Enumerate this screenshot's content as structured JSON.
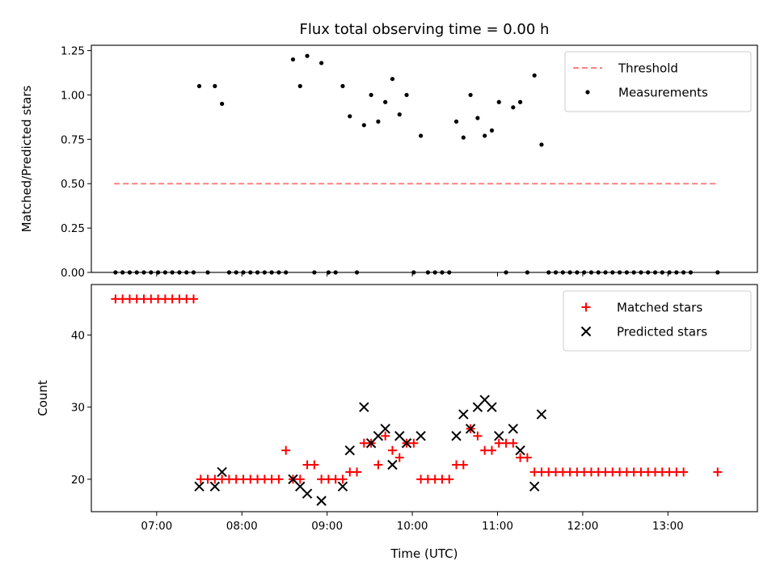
{
  "figure": {
    "title": "Flux total observing time = 0.00 h"
  },
  "chart_data": [
    {
      "type": "scatter",
      "ylabel": "Matched/Predicted stars",
      "xlabel": "",
      "ylim": [
        0,
        1.28
      ],
      "yticks": [
        "0.00",
        "0.25",
        "0.50",
        "0.75",
        "1.00",
        "1.25"
      ],
      "ytick_values": [
        0,
        0.25,
        0.5,
        0.75,
        1.0,
        1.25
      ],
      "xlim": [
        "06:14",
        "14:03"
      ],
      "xticks": [
        "07:00",
        "08:00",
        "09:00",
        "10:00",
        "11:00",
        "12:00",
        "13:00"
      ],
      "legend_position": "top-right",
      "threshold": {
        "name": "Threshold",
        "value": 0.5,
        "x_start": "06:30",
        "x_end": "13:35",
        "color": "#ff8080",
        "style": "dashed"
      },
      "series": [
        {
          "name": "Measurements",
          "color": "#000000",
          "marker": "dot",
          "points": [
            [
              "06:31",
              0
            ],
            [
              "06:36",
              0
            ],
            [
              "06:41",
              0
            ],
            [
              "06:46",
              0
            ],
            [
              "06:51",
              0
            ],
            [
              "06:56",
              0
            ],
            [
              "07:01",
              0
            ],
            [
              "07:06",
              0
            ],
            [
              "07:11",
              0
            ],
            [
              "07:16",
              0
            ],
            [
              "07:21",
              0
            ],
            [
              "07:26",
              0
            ],
            [
              "07:30",
              1.05
            ],
            [
              "07:36",
              0
            ],
            [
              "07:41",
              1.05
            ],
            [
              "07:46",
              0.95
            ],
            [
              "07:51",
              0
            ],
            [
              "07:56",
              0
            ],
            [
              "08:01",
              0
            ],
            [
              "08:06",
              0
            ],
            [
              "08:11",
              0
            ],
            [
              "08:16",
              0
            ],
            [
              "08:21",
              0
            ],
            [
              "08:26",
              0
            ],
            [
              "08:31",
              0
            ],
            [
              "08:36",
              1.2
            ],
            [
              "08:41",
              1.05
            ],
            [
              "08:46",
              1.22
            ],
            [
              "08:51",
              0
            ],
            [
              "08:56",
              1.18
            ],
            [
              "09:01",
              0
            ],
            [
              "09:06",
              0
            ],
            [
              "09:11",
              1.05
            ],
            [
              "09:16",
              0.88
            ],
            [
              "09:21",
              0
            ],
            [
              "09:26",
              0.83
            ],
            [
              "09:31",
              1.0
            ],
            [
              "09:36",
              0.85
            ],
            [
              "09:41",
              0.96
            ],
            [
              "09:46",
              1.09
            ],
            [
              "09:51",
              0.89
            ],
            [
              "09:56",
              1.0
            ],
            [
              "10:01",
              0
            ],
            [
              "10:06",
              0.77
            ],
            [
              "10:11",
              0
            ],
            [
              "10:16",
              0
            ],
            [
              "10:21",
              0
            ],
            [
              "10:26",
              0
            ],
            [
              "10:31",
              0.85
            ],
            [
              "10:36",
              0.76
            ],
            [
              "10:41",
              1.0
            ],
            [
              "10:46",
              0.87
            ],
            [
              "10:51",
              0.77
            ],
            [
              "10:56",
              0.8
            ],
            [
              "11:01",
              0.96
            ],
            [
              "11:06",
              0
            ],
            [
              "11:11",
              0.93
            ],
            [
              "11:16",
              0.96
            ],
            [
              "11:21",
              0
            ],
            [
              "11:26",
              1.11
            ],
            [
              "11:31",
              0.72
            ],
            [
              "11:36",
              0
            ],
            [
              "11:41",
              0
            ],
            [
              "11:46",
              0
            ],
            [
              "11:51",
              0
            ],
            [
              "11:56",
              0
            ],
            [
              "12:01",
              0
            ],
            [
              "12:06",
              0
            ],
            [
              "12:11",
              0
            ],
            [
              "12:16",
              0
            ],
            [
              "12:21",
              0
            ],
            [
              "12:26",
              0
            ],
            [
              "12:31",
              0
            ],
            [
              "12:36",
              0
            ],
            [
              "12:41",
              0
            ],
            [
              "12:46",
              0
            ],
            [
              "12:51",
              0
            ],
            [
              "12:56",
              0
            ],
            [
              "13:01",
              0
            ],
            [
              "13:06",
              0
            ],
            [
              "13:11",
              0
            ],
            [
              "13:16",
              0
            ],
            [
              "13:35",
              0
            ]
          ]
        }
      ]
    },
    {
      "type": "scatter",
      "xlabel": "Time (UTC)",
      "ylabel": "Count",
      "ylim": [
        15.5,
        47
      ],
      "yticks": [
        "20",
        "30",
        "40"
      ],
      "ytick_values": [
        20,
        30,
        40
      ],
      "xlim": [
        "06:14",
        "14:03"
      ],
      "xticks": [
        "07:00",
        "08:00",
        "09:00",
        "10:00",
        "11:00",
        "12:00",
        "13:00"
      ],
      "legend_position": "top-right",
      "series": [
        {
          "name": "Matched stars",
          "color": "#ff0000",
          "marker": "plus",
          "points": [
            [
              "06:31",
              45
            ],
            [
              "06:36",
              45
            ],
            [
              "06:41",
              45
            ],
            [
              "06:46",
              45
            ],
            [
              "06:51",
              45
            ],
            [
              "06:56",
              45
            ],
            [
              "07:01",
              45
            ],
            [
              "07:06",
              45
            ],
            [
              "07:11",
              45
            ],
            [
              "07:16",
              45
            ],
            [
              "07:21",
              45
            ],
            [
              "07:26",
              45
            ],
            [
              "07:31",
              20
            ],
            [
              "07:36",
              20
            ],
            [
              "07:41",
              20
            ],
            [
              "07:46",
              20
            ],
            [
              "07:51",
              20
            ],
            [
              "07:56",
              20
            ],
            [
              "08:01",
              20
            ],
            [
              "08:06",
              20
            ],
            [
              "08:11",
              20
            ],
            [
              "08:16",
              20
            ],
            [
              "08:21",
              20
            ],
            [
              "08:26",
              20
            ],
            [
              "08:31",
              24
            ],
            [
              "08:36",
              20
            ],
            [
              "08:41",
              20
            ],
            [
              "08:46",
              22
            ],
            [
              "08:51",
              22
            ],
            [
              "08:56",
              20
            ],
            [
              "09:01",
              20
            ],
            [
              "09:06",
              20
            ],
            [
              "09:11",
              20
            ],
            [
              "09:16",
              21
            ],
            [
              "09:21",
              21
            ],
            [
              "09:26",
              25
            ],
            [
              "09:31",
              25
            ],
            [
              "09:36",
              22
            ],
            [
              "09:41",
              26
            ],
            [
              "09:46",
              24
            ],
            [
              "09:51",
              23
            ],
            [
              "09:56",
              25
            ],
            [
              "10:01",
              25
            ],
            [
              "10:06",
              20
            ],
            [
              "10:11",
              20
            ],
            [
              "10:16",
              20
            ],
            [
              "10:21",
              20
            ],
            [
              "10:26",
              20
            ],
            [
              "10:31",
              22
            ],
            [
              "10:36",
              22
            ],
            [
              "10:41",
              27
            ],
            [
              "10:46",
              26
            ],
            [
              "10:51",
              24
            ],
            [
              "10:56",
              24
            ],
            [
              "11:01",
              25
            ],
            [
              "11:06",
              25
            ],
            [
              "11:11",
              25
            ],
            [
              "11:16",
              23
            ],
            [
              "11:21",
              23
            ],
            [
              "11:26",
              21
            ],
            [
              "11:31",
              21
            ],
            [
              "11:36",
              21
            ],
            [
              "11:41",
              21
            ],
            [
              "11:46",
              21
            ],
            [
              "11:51",
              21
            ],
            [
              "11:56",
              21
            ],
            [
              "12:01",
              21
            ],
            [
              "12:06",
              21
            ],
            [
              "12:11",
              21
            ],
            [
              "12:16",
              21
            ],
            [
              "12:21",
              21
            ],
            [
              "12:26",
              21
            ],
            [
              "12:31",
              21
            ],
            [
              "12:36",
              21
            ],
            [
              "12:41",
              21
            ],
            [
              "12:46",
              21
            ],
            [
              "12:51",
              21
            ],
            [
              "12:56",
              21
            ],
            [
              "13:01",
              21
            ],
            [
              "13:06",
              21
            ],
            [
              "13:11",
              21
            ],
            [
              "13:35",
              21
            ]
          ]
        },
        {
          "name": "Predicted stars",
          "color": "#000000",
          "marker": "x",
          "points": [
            [
              "07:30",
              19
            ],
            [
              "07:41",
              19
            ],
            [
              "07:46",
              21
            ],
            [
              "08:36",
              20
            ],
            [
              "08:41",
              19
            ],
            [
              "08:46",
              18
            ],
            [
              "08:56",
              17
            ],
            [
              "09:11",
              19
            ],
            [
              "09:16",
              24
            ],
            [
              "09:26",
              30
            ],
            [
              "09:31",
              25
            ],
            [
              "09:36",
              26
            ],
            [
              "09:41",
              27
            ],
            [
              "09:46",
              22
            ],
            [
              "09:51",
              26
            ],
            [
              "09:56",
              25
            ],
            [
              "10:06",
              26
            ],
            [
              "10:31",
              26
            ],
            [
              "10:36",
              29
            ],
            [
              "10:41",
              27
            ],
            [
              "10:46",
              30
            ],
            [
              "10:51",
              31
            ],
            [
              "10:56",
              30
            ],
            [
              "11:01",
              26
            ],
            [
              "11:11",
              27
            ],
            [
              "11:16",
              24
            ],
            [
              "11:26",
              19
            ],
            [
              "11:31",
              29
            ]
          ]
        }
      ]
    }
  ]
}
